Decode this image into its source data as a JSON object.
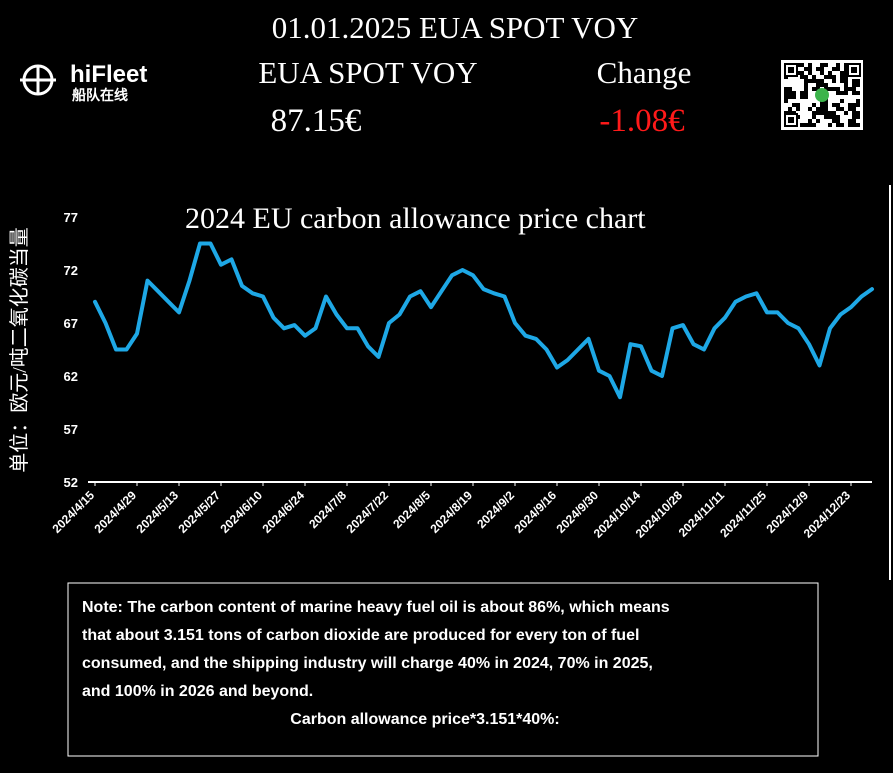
{
  "header": {
    "title": "01.01.2025 EUA SPOT VOY",
    "logo_name": "hiFleet",
    "logo_subtitle": "船队在线",
    "price_label": "EUA SPOT VOY",
    "price": "87.15€",
    "change_label": "Change",
    "change": "-1.08€"
  },
  "chart_data": {
    "type": "line",
    "title": "2024 EU carbon allowance price chart",
    "y_label": "单位：欧元/吨二氧化碳当量",
    "color": "#1ea8e6",
    "categories": [
      "2024/4/15",
      null,
      null,
      null,
      "2024/4/29",
      null,
      null,
      null,
      "2024/5/13",
      null,
      null,
      null,
      "2024/5/27",
      null,
      null,
      null,
      "2024/6/10",
      null,
      null,
      null,
      "2024/6/24",
      null,
      null,
      null,
      "2024/7/8",
      null,
      null,
      null,
      "2024/7/22",
      null,
      null,
      null,
      "2024/8/5",
      null,
      null,
      null,
      "2024/8/19",
      null,
      null,
      null,
      "2024/9/2",
      null,
      null,
      null,
      "2024/9/16",
      null,
      null,
      null,
      "2024/9/30",
      null,
      null,
      null,
      "2024/10/14",
      null,
      null,
      null,
      "2024/10/28",
      null,
      null,
      null,
      "2024/11/11",
      null,
      null,
      null,
      "2024/11/25",
      null,
      null,
      null,
      "2024/12/9",
      null,
      null,
      null,
      "2024/12/23",
      null,
      null
    ],
    "values": [
      69,
      67,
      64.5,
      64.5,
      66,
      71,
      70,
      69,
      68,
      71,
      74.5,
      74.5,
      72.5,
      73,
      70.5,
      69.8,
      69.5,
      67.5,
      66.5,
      66.8,
      65.8,
      66.5,
      69.5,
      67.8,
      66.5,
      66.5,
      64.8,
      63.8,
      67,
      67.8,
      69.5,
      70,
      68.5,
      70,
      71.5,
      72,
      71.5,
      70.2,
      69.8,
      69.5,
      67,
      65.8,
      65.5,
      64.5,
      62.8,
      63.5,
      64.5,
      65.5,
      62.5,
      62,
      60,
      65,
      64.8,
      62.5,
      62,
      66.5,
      66.8,
      65,
      64.5,
      66.5,
      67.5,
      69,
      69.5,
      69.8,
      68,
      68,
      67,
      66.5,
      65,
      63,
      66.5,
      67.8,
      68.5,
      69.5,
      70.2
    ],
    "ylim": [
      52,
      77
    ],
    "yticks": [
      52,
      57,
      62,
      67,
      72,
      77
    ],
    "grid": false
  },
  "note": {
    "lines": [
      "Note: The carbon content of marine heavy fuel oil is about 86%, which means",
      "that about 3.151 tons of carbon dioxide are produced for every ton of fuel",
      "consumed, and the shipping industry will charge 40% in 2024, 70% in 2025,",
      "and 100% in 2026 and beyond."
    ],
    "formula": "Carbon allowance price*3.151*40%:"
  }
}
